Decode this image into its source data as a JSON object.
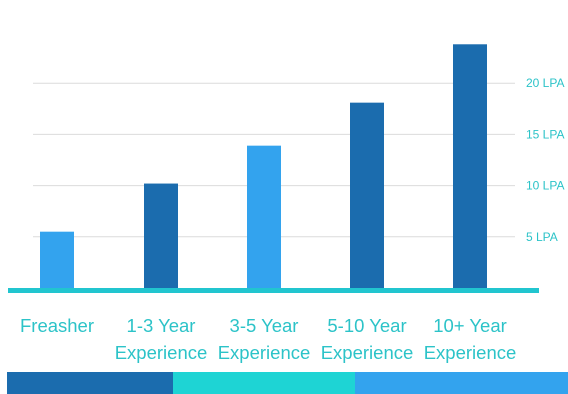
{
  "chart_data": {
    "type": "bar",
    "title": "",
    "xlabel": "",
    "ylabel": "",
    "categories": [
      [
        "Freasher"
      ],
      [
        "1-3 Year",
        "Experience"
      ],
      [
        "3-5 Year",
        "Experience"
      ],
      [
        "5-10 Year",
        "Experience"
      ],
      [
        "10+ Year",
        "Experience"
      ]
    ],
    "values": [
      5.5,
      10.2,
      13.9,
      18.1,
      23.8
    ],
    "y_ticks": [
      {
        "value": 5,
        "label": "5 LPA"
      },
      {
        "value": 10,
        "label": "10 LPA"
      },
      {
        "value": 15,
        "label": "15 LPA"
      },
      {
        "value": 20,
        "label": "20 LPA"
      }
    ],
    "ylim": [
      0,
      24
    ],
    "y_axis_side": "right",
    "grid": true,
    "colors": {
      "bar_light": "#33a3ee",
      "bar_dark": "#1b6cae",
      "baseline": "#21c5cf",
      "grid": "#dcdcdc",
      "label": "#2cc3c8"
    },
    "bar_color_pattern": [
      "light",
      "dark",
      "light",
      "dark",
      "dark"
    ]
  },
  "footer": {
    "bands": [
      "#1b6cae",
      "#1ed4d4",
      "#33a3ee"
    ]
  }
}
